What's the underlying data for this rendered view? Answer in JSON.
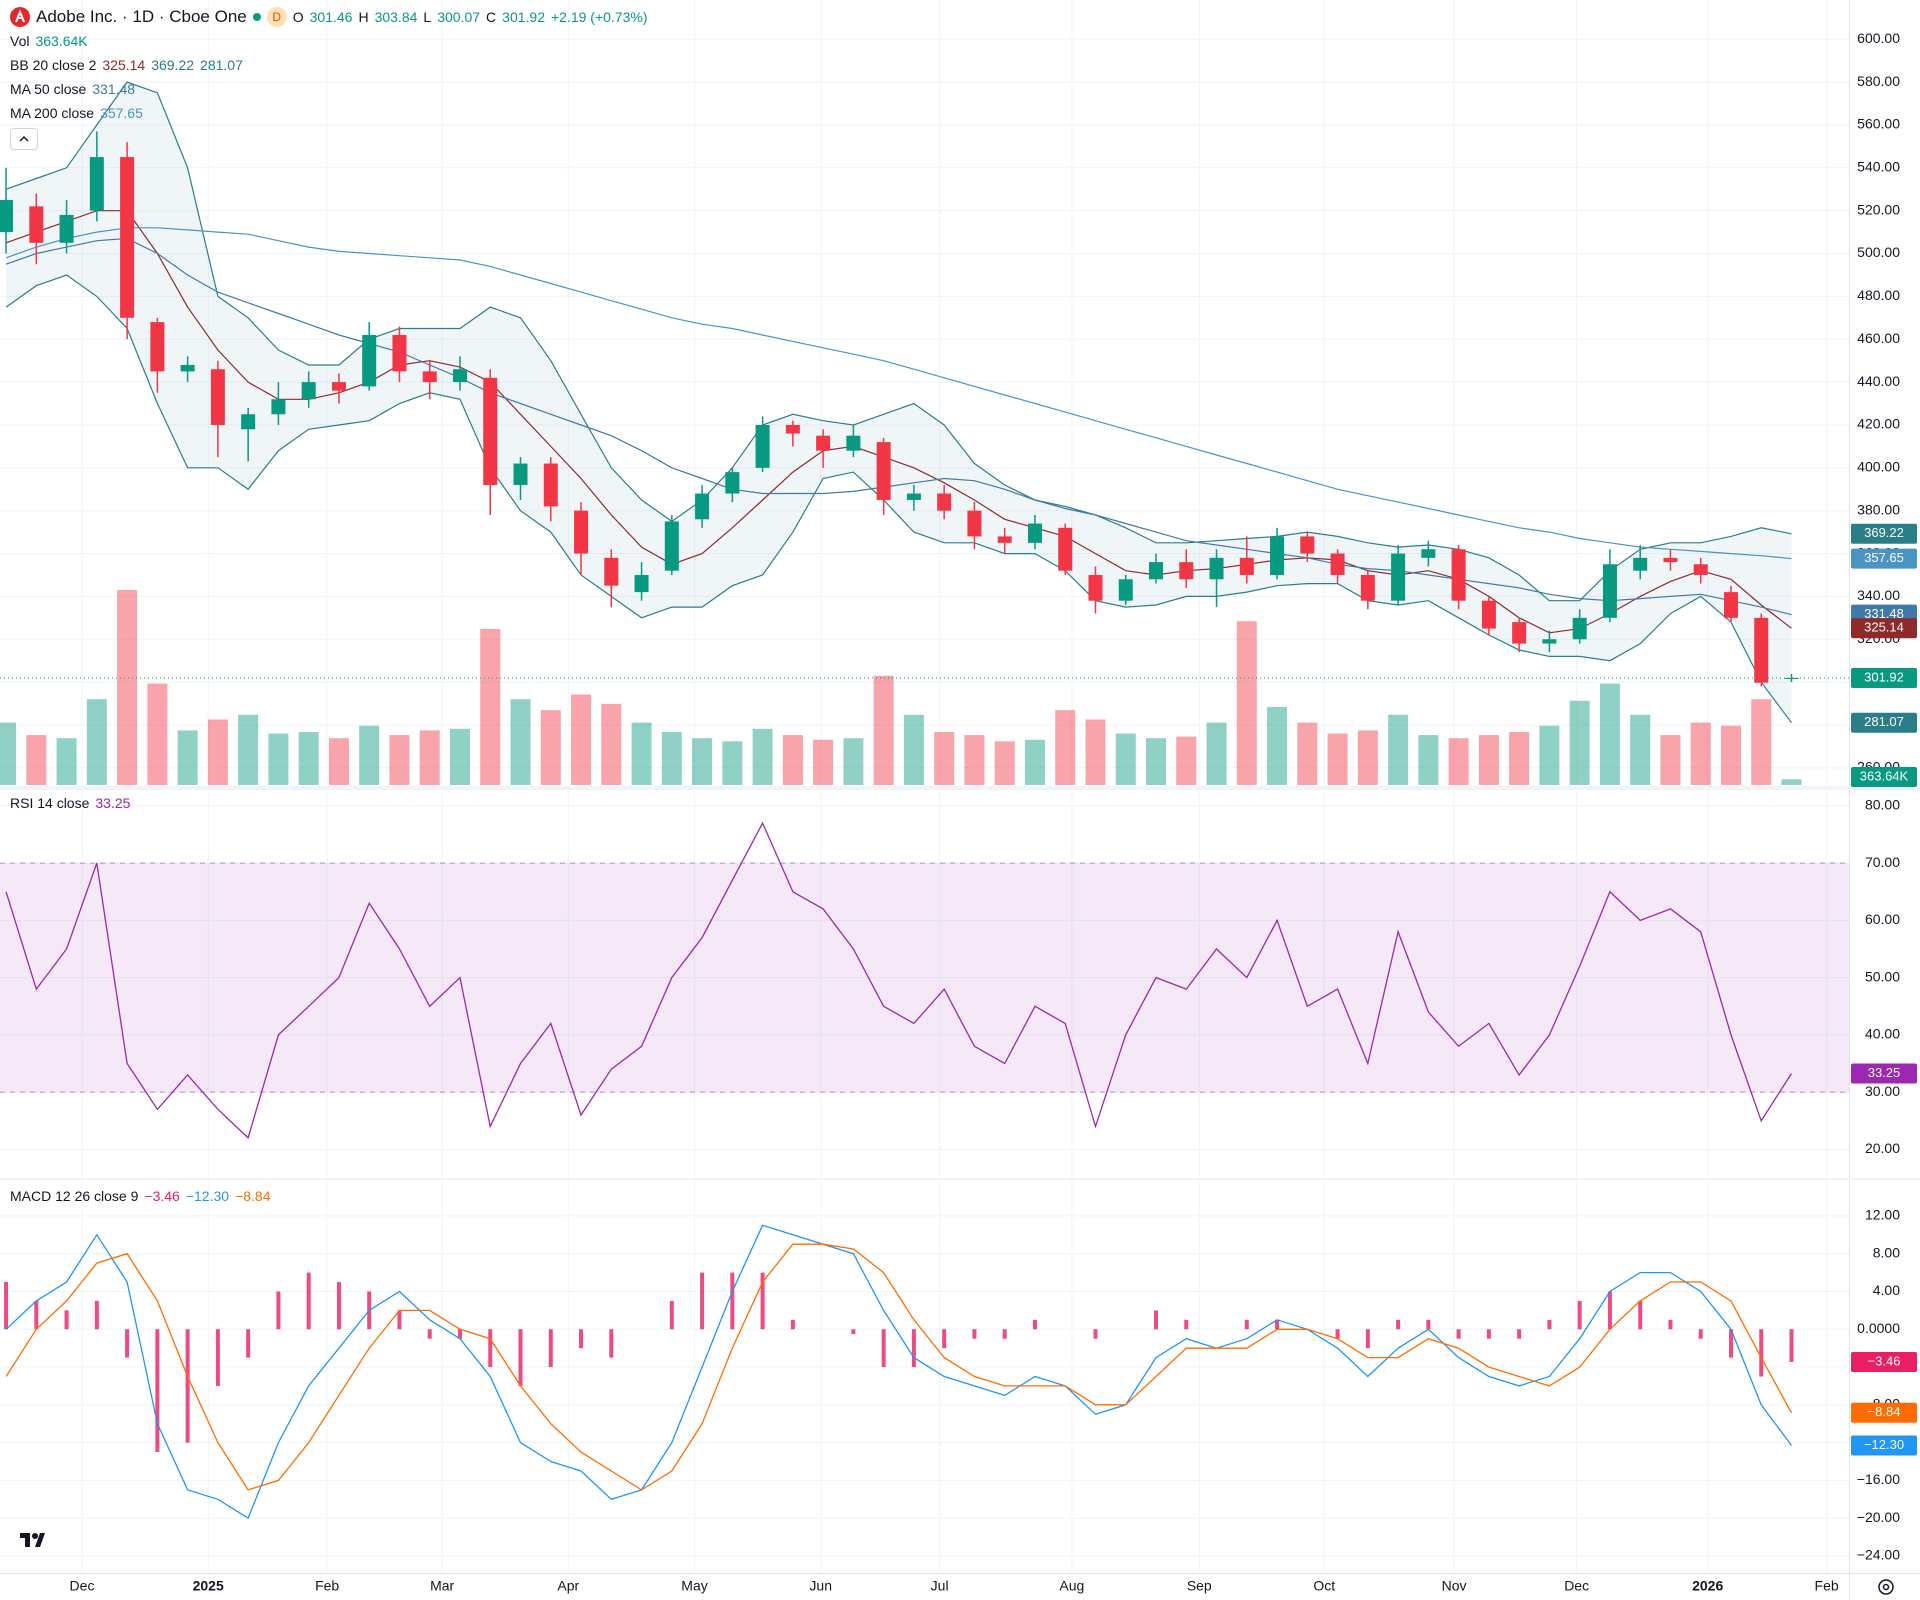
{
  "chart_data": [
    {
      "type": "candlestick",
      "title": "Adobe Inc. · 1D · Cboe One",
      "interval": "D",
      "ohlc_labels": [
        "O",
        "H",
        "L",
        "C"
      ],
      "change_label": "+2.19 (+0.73%)",
      "up_color": "#089981",
      "down_color": "#f23645",
      "open": [
        510,
        522,
        505,
        520,
        545,
        468,
        445,
        446,
        418,
        425,
        432,
        440,
        438,
        462,
        445,
        440,
        442,
        392,
        402,
        380,
        358,
        342,
        352,
        376,
        388,
        400,
        420,
        415,
        408,
        412,
        385,
        388,
        380,
        368,
        365,
        372,
        350,
        338,
        348,
        356,
        348,
        358,
        350,
        368,
        360,
        350,
        338,
        358,
        362,
        338,
        328,
        318,
        320,
        330,
        352,
        358,
        355,
        342,
        330,
        301.46
      ],
      "high": [
        540,
        528,
        525,
        557,
        552,
        470,
        452,
        450,
        428,
        440,
        445,
        444,
        468,
        466,
        450,
        452,
        446,
        405,
        405,
        384,
        362,
        356,
        378,
        392,
        400,
        424,
        422,
        418,
        420,
        414,
        392,
        392,
        384,
        372,
        378,
        374,
        354,
        350,
        360,
        362,
        362,
        368,
        372,
        370,
        362,
        352,
        364,
        366,
        364,
        340,
        330,
        324,
        334,
        362,
        364,
        362,
        358,
        345,
        332,
        303.84
      ],
      "low": [
        500,
        495,
        500,
        515,
        460,
        435,
        440,
        405,
        403,
        420,
        428,
        430,
        436,
        440,
        432,
        436,
        378,
        385,
        375,
        350,
        335,
        338,
        350,
        372,
        384,
        398,
        410,
        400,
        405,
        378,
        380,
        376,
        362,
        360,
        362,
        350,
        332,
        336,
        346,
        344,
        335,
        346,
        348,
        356,
        346,
        334,
        336,
        354,
        334,
        322,
        314,
        314,
        318,
        328,
        348,
        352,
        346,
        328,
        298,
        300.07
      ],
      "close": [
        525,
        505,
        518,
        545,
        470,
        445,
        448,
        420,
        425,
        432,
        440,
        436,
        462,
        445,
        440,
        446,
        392,
        402,
        382,
        360,
        345,
        350,
        375,
        388,
        398,
        420,
        416,
        408,
        415,
        385,
        388,
        380,
        368,
        365,
        374,
        352,
        338,
        348,
        356,
        348,
        358,
        350,
        368,
        360,
        350,
        338,
        360,
        362,
        338,
        325,
        318,
        320,
        330,
        355,
        358,
        356,
        350,
        330,
        299.73,
        301.92
      ],
      "volume": {
        "name": "Vol",
        "last_label": "363.64K",
        "values": [
          4000000,
          3200000,
          3000000,
          5500000,
          12500000,
          6500000,
          3500000,
          4200000,
          4500000,
          3300000,
          3400000,
          3000000,
          3800000,
          3200000,
          3500000,
          3600000,
          10000000,
          5500000,
          4800000,
          5800000,
          5200000,
          4000000,
          3400000,
          3000000,
          2800000,
          3600000,
          3200000,
          2900000,
          3000000,
          7000000,
          4500000,
          3400000,
          3200000,
          2800000,
          2900000,
          4800000,
          4200000,
          3300000,
          3000000,
          3100000,
          4000000,
          10500000,
          5000000,
          4000000,
          3300000,
          3500000,
          4500000,
          3200000,
          3000000,
          3200000,
          3400000,
          3800000,
          5400000,
          6500000,
          4500000,
          3200000,
          4000000,
          3800000,
          5500000,
          363640
        ]
      },
      "bollinger": {
        "name": "BB 20 close 2",
        "color": "#2a7e87",
        "basis_color": "#8e2a2a",
        "upper": [
          530,
          535,
          540,
          560,
          580,
          575,
          540,
          480,
          470,
          455,
          448,
          448,
          460,
          465,
          465,
          465,
          475,
          470,
          450,
          425,
          400,
          385,
          375,
          385,
          400,
          420,
          425,
          422,
          420,
          425,
          430,
          420,
          402,
          392,
          385,
          382,
          378,
          372,
          365,
          365,
          366,
          367,
          368,
          370,
          368,
          365,
          363,
          364,
          362,
          358,
          350,
          338,
          338,
          352,
          362,
          365,
          365,
          368,
          372,
          369.22
        ],
        "basis": [
          505,
          510,
          515,
          520,
          520,
          500,
          475,
          455,
          440,
          432,
          432,
          435,
          440,
          448,
          450,
          447,
          440,
          425,
          410,
          395,
          378,
          363,
          355,
          360,
          372,
          385,
          398,
          408,
          410,
          405,
          400,
          393,
          385,
          376,
          372,
          368,
          360,
          352,
          350,
          352,
          353,
          355,
          357,
          358,
          357,
          352,
          350,
          352,
          348,
          340,
          330,
          323,
          325,
          332,
          340,
          347,
          352,
          348,
          336,
          325.14
        ],
        "lower": [
          475,
          485,
          490,
          480,
          465,
          430,
          400,
          400,
          390,
          408,
          418,
          420,
          422,
          430,
          435,
          432,
          400,
          380,
          370,
          350,
          340,
          330,
          335,
          335,
          345,
          350,
          370,
          395,
          398,
          385,
          370,
          365,
          365,
          360,
          360,
          352,
          338,
          335,
          336,
          340,
          340,
          342,
          345,
          346,
          346,
          338,
          336,
          338,
          330,
          322,
          315,
          312,
          312,
          310,
          318,
          332,
          340,
          328,
          300,
          281.07
        ]
      },
      "series": [
        {
          "name": "MA 50 close",
          "color": "#3f7aa8",
          "values": [
            495,
            500,
            503,
            506,
            507,
            500,
            490,
            482,
            477,
            472,
            467,
            462,
            458,
            454,
            448,
            442,
            435,
            430,
            425,
            420,
            415,
            408,
            400,
            395,
            390,
            388,
            388,
            388,
            389,
            391,
            393,
            395,
            394,
            390,
            385,
            381,
            378,
            374,
            370,
            366,
            364,
            362,
            360,
            358,
            355,
            353,
            352,
            350,
            348,
            346,
            344,
            341,
            339,
            338,
            339,
            340,
            341,
            338,
            335,
            331.48
          ]
        },
        {
          "name": "MA 200 close",
          "color": "#4a94c4",
          "values": [
            498,
            503,
            507,
            510,
            512,
            512,
            511,
            510,
            509,
            506,
            503,
            501,
            500,
            499,
            498,
            497,
            494,
            490,
            486,
            482,
            478,
            474,
            470,
            467,
            465,
            462,
            459,
            456,
            453,
            450,
            446,
            442,
            438,
            434,
            430,
            426,
            422,
            418,
            414,
            410,
            406,
            402,
            398,
            394,
            390,
            387,
            384,
            381,
            378,
            375,
            372,
            370,
            367,
            365,
            363,
            362,
            361,
            360,
            359,
            357.65
          ]
        }
      ],
      "xlim": [
        -0.2,
        60.9
      ],
      "ylim": [
        252,
        618.3
      ],
      "grid": true,
      "yticks": [
        {
          "value": 260,
          "label": "260.00"
        },
        {
          "value": 280,
          "label": "280.00"
        },
        {
          "value": 300,
          "label": "300.00"
        },
        {
          "value": 320,
          "label": "320.00"
        },
        {
          "value": 340,
          "label": "340.00"
        },
        {
          "value": 360,
          "label": "360.00"
        },
        {
          "value": 380,
          "label": "380.00"
        },
        {
          "value": 400,
          "label": "400.00"
        },
        {
          "value": 420,
          "label": "420.00"
        },
        {
          "value": 440,
          "label": "440.00"
        },
        {
          "value": 460,
          "label": "460.00"
        },
        {
          "value": 480,
          "label": "480.00"
        },
        {
          "value": 500,
          "label": "500.00"
        },
        {
          "value": 520,
          "label": "520.00"
        },
        {
          "value": 540,
          "label": "540.00"
        },
        {
          "value": 560,
          "label": "560.00"
        },
        {
          "value": 580,
          "label": "580.00"
        },
        {
          "value": 600,
          "label": "600.00"
        }
      ]
    },
    {
      "type": "line",
      "title": "RSI 14 close",
      "color": "#9c27b0",
      "band": [
        30,
        70
      ],
      "values": [
        65,
        48,
        55,
        70,
        35,
        27,
        33,
        27,
        22,
        40,
        45,
        50,
        63,
        55,
        45,
        50,
        24,
        35,
        42,
        26,
        34,
        38,
        50,
        57,
        67,
        77,
        65,
        62,
        55,
        45,
        42,
        48,
        38,
        35,
        45,
        42,
        24,
        40,
        50,
        48,
        55,
        50,
        60,
        45,
        48,
        35,
        58,
        44,
        38,
        42,
        33,
        40,
        52,
        65,
        60,
        62,
        58,
        40,
        25,
        33.25
      ],
      "xlim": [
        -0.2,
        60.9
      ],
      "ylim": [
        15,
        82.6
      ],
      "grid": true,
      "yticks": [
        {
          "value": 20,
          "label": "20.00"
        },
        {
          "value": 30,
          "label": "30.00"
        },
        {
          "value": 40,
          "label": "40.00"
        },
        {
          "value": 50,
          "label": "50.00"
        },
        {
          "value": 60,
          "label": "60.00"
        },
        {
          "value": 70,
          "label": "70.00"
        },
        {
          "value": 80,
          "label": "80.00"
        }
      ]
    },
    {
      "type": "macd",
      "title": "MACD 12 26 close 9",
      "histogram": {
        "color": "#e91e63",
        "last_label": "−3.46",
        "values": [
          5,
          3,
          2,
          3,
          -3,
          -13,
          -12,
          -6,
          -3,
          4,
          6,
          5,
          4,
          2,
          -1,
          -1,
          -4,
          -6,
          -4,
          -2,
          -3,
          0,
          3,
          6,
          6,
          6,
          1,
          0,
          -0.5,
          -4,
          -4,
          -2,
          -1,
          -1,
          1,
          0,
          -1,
          0,
          2,
          1,
          0,
          1,
          1,
          0,
          -1,
          -2,
          1,
          1,
          -1,
          -1,
          -1,
          1,
          3,
          4,
          3,
          1,
          -1,
          -3,
          -5,
          -3.46
        ]
      },
      "macd": {
        "color": "#2196f3",
        "last_label": "−12.30",
        "values": [
          0,
          3,
          5,
          10,
          5,
          -10,
          -17,
          -18,
          -20,
          -12,
          -6,
          -2,
          2,
          4,
          1,
          -1,
          -5,
          -12,
          -14,
          -15,
          -18,
          -17,
          -12,
          -4,
          4,
          11,
          10,
          9,
          8,
          2,
          -3,
          -5,
          -6,
          -7,
          -5,
          -6,
          -9,
          -8,
          -3,
          -1,
          -2,
          -1,
          1,
          0,
          -2,
          -5,
          -2,
          0,
          -3,
          -5,
          -6,
          -5,
          -1,
          4,
          6,
          6,
          4,
          0,
          -8,
          -12.3
        ]
      },
      "signal": {
        "color": "#ff6d00",
        "last_label": "−8.84",
        "values": [
          -5,
          0,
          3,
          7,
          8,
          3,
          -5,
          -12,
          -17,
          -16,
          -12,
          -7,
          -2,
          2,
          2,
          0,
          -1,
          -6,
          -10,
          -13,
          -15,
          -17,
          -15,
          -10,
          -2,
          5,
          9,
          9,
          8.5,
          6,
          1,
          -3,
          -5,
          -6,
          -6,
          -6,
          -8,
          -8,
          -5,
          -2,
          -2,
          -2,
          0,
          0,
          -1,
          -3,
          -3,
          -1,
          -2,
          -4,
          -5,
          -6,
          -4,
          0,
          3,
          5,
          5,
          3,
          -3,
          -8.84
        ]
      },
      "xlim": [
        -0.2,
        60.9
      ],
      "ylim": [
        -25.8,
        15.8
      ],
      "grid": true,
      "yticks": [
        {
          "value": 12,
          "label": "12.00"
        },
        {
          "value": 8,
          "label": "8.00"
        },
        {
          "value": 4,
          "label": "4.00"
        },
        {
          "value": 0,
          "label": "0.0000"
        },
        {
          "value": -4,
          "label": "−4.00"
        },
        {
          "value": -8,
          "label": "−8.00"
        },
        {
          "value": -12,
          "label": "−12.00"
        },
        {
          "value": -16,
          "label": "−16.00"
        },
        {
          "value": -20,
          "label": "−20.00"
        },
        {
          "value": -24,
          "label": "−24.00"
        }
      ],
      "xticks": [
        {
          "value": 2.51,
          "label": "Dec"
        },
        {
          "value": 6.68,
          "label": "2025"
        },
        {
          "value": 10.61,
          "label": "Feb"
        },
        {
          "value": 14.41,
          "label": "Mar"
        },
        {
          "value": 18.58,
          "label": "Apr"
        },
        {
          "value": 22.75,
          "label": "May"
        },
        {
          "value": 26.92,
          "label": "Jun"
        },
        {
          "value": 30.85,
          "label": "Jul"
        },
        {
          "value": 35.22,
          "label": "Aug"
        },
        {
          "value": 39.43,
          "label": "Sep"
        },
        {
          "value": 43.56,
          "label": "Oct"
        },
        {
          "value": 47.85,
          "label": "Nov"
        },
        {
          "value": 51.9,
          "label": "Dec"
        },
        {
          "value": 56.23,
          "label": "2026"
        },
        {
          "value": 60.16,
          "label": "Feb"
        }
      ]
    }
  ]
}
